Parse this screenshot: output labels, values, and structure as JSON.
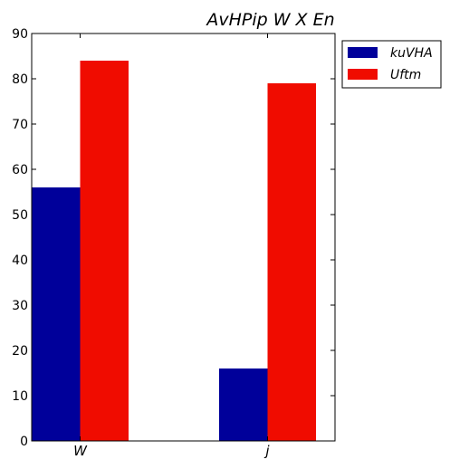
{
  "chart_data": {
    "type": "bar",
    "title": "AvHPip W X  En",
    "categories": [
      "W",
      "j"
    ],
    "series": [
      {
        "name": "kuVHA",
        "color": "#00009a",
        "values": [
          56,
          16
        ]
      },
      {
        "name": "Uftm",
        "color": "#f00c00",
        "values": [
          84,
          79
        ]
      }
    ],
    "ylim": [
      0,
      90
    ],
    "yticks": [
      0,
      10,
      20,
      30,
      40,
      50,
      60,
      70,
      80,
      90
    ],
    "xlabel": "",
    "ylabel": "",
    "grid": false,
    "legend_position": "outside-top-right"
  }
}
